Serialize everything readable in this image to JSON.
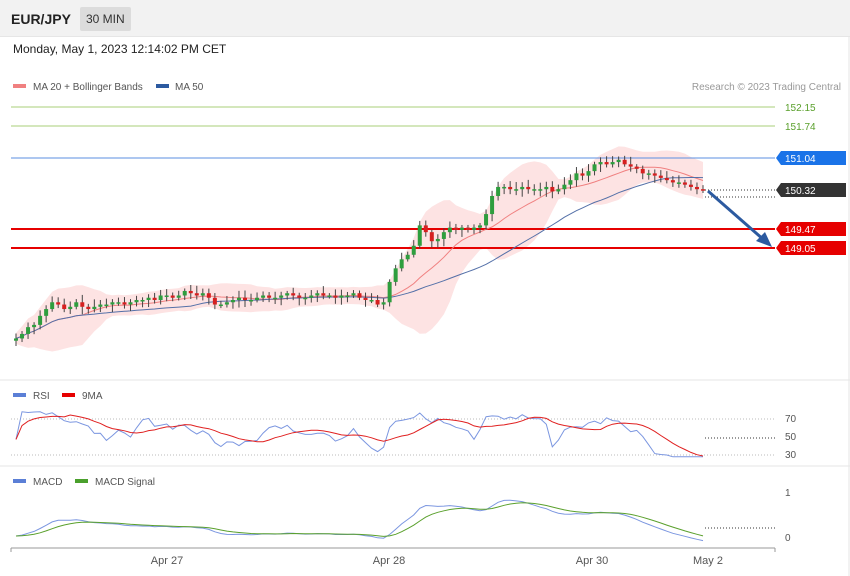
{
  "header": {
    "symbol": "EUR/JPY",
    "timeframe": "30 MIN",
    "datetime": "Monday, May 1, 2023 12:14:02 PM CET"
  },
  "main_panel": {
    "legend": [
      {
        "name": "MA 20 + Bollinger Bands",
        "color": "#f08080"
      },
      {
        "name": "MA 50",
        "color": "#2c5aa0"
      }
    ],
    "credit": "Research © 2023 Trading Central",
    "levels": [
      {
        "label": "152.15",
        "type": "resistance-thin",
        "color": "#7cb342"
      },
      {
        "label": "151.74",
        "type": "resistance-thin",
        "color": "#7cb342"
      },
      {
        "label": "151.04",
        "type": "pivot",
        "color": "#1a73e8"
      },
      {
        "label": "150.32",
        "type": "last-price",
        "color": "#333333"
      },
      {
        "label": "149.47",
        "type": "support",
        "color": "#e60000"
      },
      {
        "label": "149.05",
        "type": "support",
        "color": "#e60000"
      }
    ],
    "arrow": "down"
  },
  "rsi_panel": {
    "legend": [
      {
        "name": "RSI",
        "color": "#5b7fd6"
      },
      {
        "name": "9MA",
        "color": "#e60000"
      }
    ],
    "levels": [
      "70",
      "50",
      "30"
    ]
  },
  "macd_panel": {
    "legend": [
      {
        "name": "MACD",
        "color": "#5b7fd6"
      },
      {
        "name": "MACD Signal",
        "color": "#4aa02c"
      }
    ],
    "levels": [
      "1",
      "0"
    ]
  },
  "x_axis": {
    "ticks": [
      "Apr 27",
      "Apr 28",
      "Apr 30",
      "May 2"
    ]
  },
  "chart_data": [
    {
      "type": "candlestick",
      "title": "EUR/JPY",
      "ylim": [
        147.7,
        152.6
      ],
      "close_path": [
        147.05,
        147.15,
        147.3,
        147.35,
        147.55,
        147.7,
        147.85,
        147.8,
        147.7,
        147.75,
        147.85,
        147.75,
        147.7,
        147.75,
        147.8,
        147.8,
        147.85,
        147.85,
        147.8,
        147.85,
        147.9,
        147.9,
        147.95,
        147.9,
        148.0,
        148.0,
        147.95,
        148.0,
        148.1,
        148.05,
        148.0,
        148.05,
        147.95,
        147.8,
        147.8,
        147.85,
        147.9,
        147.95,
        147.9,
        147.9,
        147.95,
        148.0,
        147.95,
        147.95,
        148.0,
        148.05,
        148.0,
        147.95,
        147.95,
        148.0,
        148.05,
        148.0,
        148.0,
        147.95,
        148.0,
        148.0,
        148.05,
        147.95,
        147.9,
        147.9,
        147.8,
        147.85,
        148.3,
        148.6,
        148.8,
        148.9,
        149.1,
        149.55,
        149.4,
        149.2,
        149.25,
        149.4,
        149.5,
        149.45,
        149.5,
        149.45,
        149.5,
        149.55,
        149.8,
        150.2,
        150.4,
        150.4,
        150.35,
        150.35,
        150.4,
        150.35,
        150.35,
        150.35,
        150.4,
        150.3,
        150.35,
        150.45,
        150.55,
        150.7,
        150.65,
        150.75,
        150.9,
        150.95,
        150.9,
        150.95,
        151.0,
        150.9,
        150.85,
        150.8,
        150.7,
        150.7,
        150.65,
        150.6,
        150.55,
        150.5,
        150.5,
        150.45,
        150.4,
        150.35,
        150.32
      ]
    },
    {
      "type": "line",
      "title": "RSI",
      "ylim": [
        30,
        70
      ],
      "ticks": [
        70,
        50,
        30
      ]
    },
    {
      "type": "line",
      "title": "MACD",
      "ylim": [
        0,
        1
      ],
      "ticks": [
        1,
        0
      ]
    }
  ]
}
